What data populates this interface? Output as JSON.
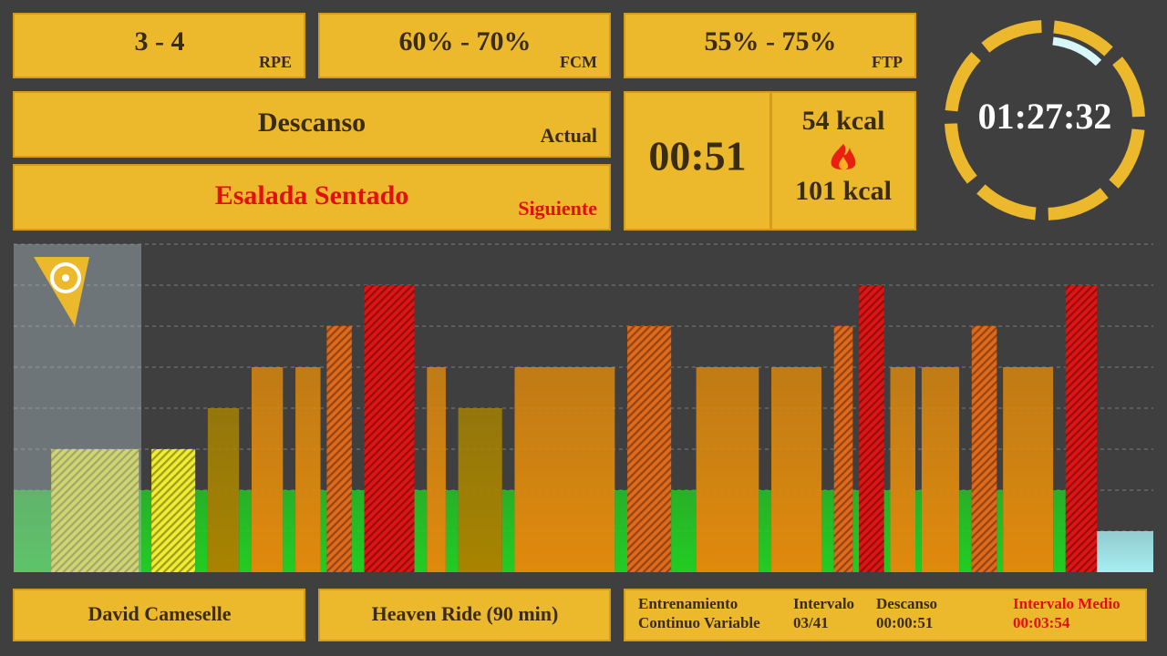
{
  "targets": {
    "rpe": {
      "value": "3 - 4",
      "label": "RPE"
    },
    "fcm": {
      "value": "60% - 70%",
      "label": "FCM"
    },
    "ftp": {
      "value": "55% - 75%",
      "label": "FTP"
    }
  },
  "current": {
    "name": "Descanso",
    "label": "Actual"
  },
  "next": {
    "name": "Esalada Sentado",
    "label": "Siguiente"
  },
  "interval_timer": "00:51",
  "calories": {
    "interval": "54 kcal",
    "total": "101 kcal"
  },
  "clock": "01:27:32",
  "footer": {
    "rider": "David Cameselle",
    "session": "Heaven Ride (90 min)",
    "type_label_1": "Entrenamiento",
    "type_label_2": "Continuo Variable",
    "interval_label": "Intervalo",
    "interval_value": "03/41",
    "rest_label": "Descanso",
    "rest_value": "00:00:51",
    "avg_label": "Intervalo Medio",
    "avg_value": "00:03:54"
  },
  "workout": {
    "ylim": [
      0,
      8
    ],
    "zones": [
      {
        "level": 1,
        "color": "#a6eef2",
        "hatch": false
      },
      {
        "level": 2,
        "color": "#22cc22",
        "hatch": false
      },
      {
        "level": 3,
        "color": "#f0ec30",
        "hatch": true
      },
      {
        "level": 4,
        "color": "#a88400",
        "hatch": false
      },
      {
        "level": 5,
        "color": "#e08a0c",
        "hatch": false
      },
      {
        "level": 6,
        "color": "#e06a1c",
        "hatch": true
      },
      {
        "level": 7,
        "color": "#e01414",
        "hatch": true
      }
    ],
    "segments": [
      {
        "level": 2,
        "minutes": 3
      },
      {
        "level": 3,
        "minutes": 7
      },
      {
        "level": 2,
        "minutes": 1
      },
      {
        "level": 3,
        "minutes": 3.5
      },
      {
        "level": 2,
        "minutes": 1
      },
      {
        "level": 4,
        "minutes": 2.5
      },
      {
        "level": 2,
        "minutes": 1
      },
      {
        "level": 5,
        "minutes": 2.5
      },
      {
        "level": 2,
        "minutes": 1
      },
      {
        "level": 5,
        "minutes": 2
      },
      {
        "level": 2,
        "minutes": 0.5
      },
      {
        "level": 6,
        "minutes": 2
      },
      {
        "level": 2,
        "minutes": 1
      },
      {
        "level": 7,
        "minutes": 4
      },
      {
        "level": 2,
        "minutes": 1
      },
      {
        "level": 5,
        "minutes": 1.5
      },
      {
        "level": 2,
        "minutes": 1
      },
      {
        "level": 4,
        "minutes": 3.5
      },
      {
        "level": 2,
        "minutes": 1
      },
      {
        "level": 5,
        "minutes": 8
      },
      {
        "level": 2,
        "minutes": 1
      },
      {
        "level": 6,
        "minutes": 3.5
      },
      {
        "level": 2,
        "minutes": 2
      },
      {
        "level": 5,
        "minutes": 5
      },
      {
        "level": 2,
        "minutes": 1
      },
      {
        "level": 5,
        "minutes": 4
      },
      {
        "level": 2,
        "minutes": 1
      },
      {
        "level": 6,
        "minutes": 1.5
      },
      {
        "level": 2,
        "minutes": 0.5
      },
      {
        "level": 7,
        "minutes": 2
      },
      {
        "level": 2,
        "minutes": 0.5
      },
      {
        "level": 5,
        "minutes": 2
      },
      {
        "level": 2,
        "minutes": 0.5
      },
      {
        "level": 5,
        "minutes": 3
      },
      {
        "level": 2,
        "minutes": 1
      },
      {
        "level": 6,
        "minutes": 2
      },
      {
        "level": 2,
        "minutes": 0.5
      },
      {
        "level": 5,
        "minutes": 4
      },
      {
        "level": 2,
        "minutes": 1
      },
      {
        "level": 7,
        "minutes": 2.5
      },
      {
        "level": 1,
        "minutes": 4.5
      }
    ]
  }
}
